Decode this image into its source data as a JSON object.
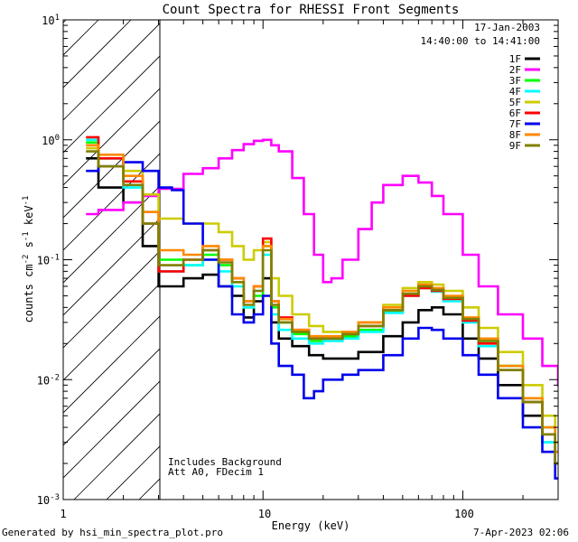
{
  "chart_data": {
    "type": "line",
    "title": "Count Spectra for RHESSI Front Segments",
    "xlabel": "Energy (keV)",
    "ylabel": "counts cm-2 s-1 keV-1",
    "xscale": "log",
    "yscale": "log",
    "xlim": [
      1,
      300
    ],
    "ylim": [
      0.001,
      10
    ],
    "x_tick_labels": [
      "1",
      "10",
      "100"
    ],
    "y_tick_labels": [
      "10-3",
      "10-2",
      "10-1",
      "100",
      "101"
    ],
    "hatched_region_keV": [
      1,
      3
    ],
    "date_label": "17-Jan-2003",
    "time_label": "14:40:00 to 14:41:00",
    "annotations": [
      "Includes Background",
      "Att A0, FDecim 1"
    ],
    "series": [
      {
        "name": "1F",
        "color": "#000000",
        "points": [
          [
            1.3,
            0.7
          ],
          [
            1.5,
            0.4
          ],
          [
            2,
            0.3
          ],
          [
            2.5,
            0.13
          ],
          [
            3,
            0.06
          ],
          [
            4,
            0.07
          ],
          [
            5,
            0.075
          ],
          [
            6,
            0.06
          ],
          [
            7,
            0.05
          ],
          [
            8,
            0.033
          ],
          [
            9,
            0.045
          ],
          [
            10,
            0.07
          ],
          [
            11,
            0.03
          ],
          [
            12,
            0.022
          ],
          [
            14,
            0.019
          ],
          [
            17,
            0.016
          ],
          [
            20,
            0.015
          ],
          [
            25,
            0.015
          ],
          [
            30,
            0.017
          ],
          [
            40,
            0.023
          ],
          [
            50,
            0.03
          ],
          [
            60,
            0.038
          ],
          [
            70,
            0.04
          ],
          [
            80,
            0.035
          ],
          [
            100,
            0.022
          ],
          [
            120,
            0.015
          ],
          [
            150,
            0.009
          ],
          [
            200,
            0.005
          ],
          [
            250,
            0.003
          ],
          [
            290,
            0.002
          ]
        ]
      },
      {
        "name": "2F",
        "color": "#ff00ff",
        "points": [
          [
            1.3,
            0.24
          ],
          [
            1.5,
            0.26
          ],
          [
            2,
            0.3
          ],
          [
            2.5,
            0.34
          ],
          [
            3,
            0.39
          ],
          [
            4,
            0.52
          ],
          [
            5,
            0.58
          ],
          [
            6,
            0.7
          ],
          [
            7,
            0.82
          ],
          [
            8,
            0.92
          ],
          [
            9,
            0.98
          ],
          [
            10,
            1.0
          ],
          [
            11,
            0.9
          ],
          [
            12,
            0.8
          ],
          [
            14,
            0.48
          ],
          [
            16,
            0.24
          ],
          [
            18,
            0.11
          ],
          [
            20,
            0.065
          ],
          [
            22,
            0.07
          ],
          [
            25,
            0.1
          ],
          [
            30,
            0.18
          ],
          [
            35,
            0.3
          ],
          [
            40,
            0.42
          ],
          [
            50,
            0.5
          ],
          [
            60,
            0.44
          ],
          [
            70,
            0.34
          ],
          [
            80,
            0.24
          ],
          [
            100,
            0.11
          ],
          [
            120,
            0.06
          ],
          [
            150,
            0.035
          ],
          [
            200,
            0.022
          ],
          [
            250,
            0.013
          ],
          [
            300,
            0.009
          ]
        ]
      },
      {
        "name": "3F",
        "color": "#00ff00",
        "points": [
          [
            1.3,
            0.95
          ],
          [
            1.5,
            0.7
          ],
          [
            2,
            0.45
          ],
          [
            2.5,
            0.25
          ],
          [
            3,
            0.1
          ],
          [
            4,
            0.09
          ],
          [
            5,
            0.11
          ],
          [
            6,
            0.09
          ],
          [
            7,
            0.065
          ],
          [
            8,
            0.04
          ],
          [
            9,
            0.05
          ],
          [
            10,
            0.13
          ],
          [
            11,
            0.04
          ],
          [
            12,
            0.03
          ],
          [
            14,
            0.024
          ],
          [
            17,
            0.021
          ],
          [
            20,
            0.022
          ],
          [
            25,
            0.023
          ],
          [
            30,
            0.026
          ],
          [
            40,
            0.037
          ],
          [
            50,
            0.052
          ],
          [
            60,
            0.06
          ],
          [
            70,
            0.056
          ],
          [
            80,
            0.048
          ],
          [
            100,
            0.032
          ],
          [
            120,
            0.021
          ],
          [
            150,
            0.013
          ],
          [
            200,
            0.007
          ],
          [
            250,
            0.004
          ],
          [
            290,
            0.0025
          ]
        ]
      },
      {
        "name": "4F",
        "color": "#00ffff",
        "points": [
          [
            1.3,
            1.0
          ],
          [
            1.5,
            0.7
          ],
          [
            2,
            0.4
          ],
          [
            2.5,
            0.2
          ],
          [
            3,
            0.08
          ],
          [
            4,
            0.09
          ],
          [
            5,
            0.1
          ],
          [
            6,
            0.08
          ],
          [
            7,
            0.06
          ],
          [
            8,
            0.04
          ],
          [
            9,
            0.055
          ],
          [
            10,
            0.11
          ],
          [
            11,
            0.035
          ],
          [
            12,
            0.026
          ],
          [
            14,
            0.022
          ],
          [
            17,
            0.02
          ],
          [
            20,
            0.021
          ],
          [
            25,
            0.022
          ],
          [
            30,
            0.025
          ],
          [
            40,
            0.036
          ],
          [
            50,
            0.05
          ],
          [
            60,
            0.058
          ],
          [
            70,
            0.054
          ],
          [
            80,
            0.045
          ],
          [
            100,
            0.03
          ],
          [
            120,
            0.019
          ],
          [
            150,
            0.012
          ],
          [
            200,
            0.0065
          ],
          [
            250,
            0.003
          ],
          [
            290,
            0.002
          ]
        ]
      },
      {
        "name": "5F",
        "color": "#cccc00",
        "points": [
          [
            1.3,
            0.85
          ],
          [
            1.5,
            0.6
          ],
          [
            2,
            0.55
          ],
          [
            2.5,
            0.35
          ],
          [
            3,
            0.22
          ],
          [
            4,
            0.2
          ],
          [
            5,
            0.2
          ],
          [
            6,
            0.17
          ],
          [
            7,
            0.13
          ],
          [
            8,
            0.1
          ],
          [
            9,
            0.12
          ],
          [
            10,
            0.14
          ],
          [
            11,
            0.07
          ],
          [
            12,
            0.05
          ],
          [
            14,
            0.035
          ],
          [
            17,
            0.028
          ],
          [
            20,
            0.025
          ],
          [
            25,
            0.025
          ],
          [
            30,
            0.03
          ],
          [
            40,
            0.042
          ],
          [
            50,
            0.058
          ],
          [
            60,
            0.065
          ],
          [
            70,
            0.062
          ],
          [
            80,
            0.055
          ],
          [
            100,
            0.04
          ],
          [
            120,
            0.027
          ],
          [
            150,
            0.017
          ],
          [
            200,
            0.009
          ],
          [
            250,
            0.005
          ],
          [
            290,
            0.003
          ]
        ]
      },
      {
        "name": "6F",
        "color": "#ff0000",
        "points": [
          [
            1.3,
            1.05
          ],
          [
            1.5,
            0.7
          ],
          [
            2,
            0.45
          ],
          [
            2.5,
            0.2
          ],
          [
            3,
            0.08
          ],
          [
            4,
            0.1
          ],
          [
            5,
            0.12
          ],
          [
            6,
            0.1
          ],
          [
            7,
            0.07
          ],
          [
            8,
            0.045
          ],
          [
            9,
            0.06
          ],
          [
            10,
            0.15
          ],
          [
            11,
            0.045
          ],
          [
            12,
            0.033
          ],
          [
            14,
            0.026
          ],
          [
            17,
            0.022
          ],
          [
            20,
            0.022
          ],
          [
            25,
            0.024
          ],
          [
            30,
            0.028
          ],
          [
            40,
            0.038
          ],
          [
            50,
            0.05
          ],
          [
            60,
            0.058
          ],
          [
            70,
            0.055
          ],
          [
            80,
            0.047
          ],
          [
            100,
            0.031
          ],
          [
            120,
            0.02
          ],
          [
            150,
            0.012
          ],
          [
            200,
            0.0065
          ],
          [
            250,
            0.0035
          ],
          [
            290,
            0.002
          ]
        ]
      },
      {
        "name": "7F",
        "color": "#0000ee",
        "points": [
          [
            1.3,
            0.55
          ],
          [
            1.5,
            0.6
          ],
          [
            2,
            0.65
          ],
          [
            2.5,
            0.55
          ],
          [
            3,
            0.4
          ],
          [
            3.5,
            0.38
          ],
          [
            4,
            0.2
          ],
          [
            5,
            0.1
          ],
          [
            6,
            0.06
          ],
          [
            7,
            0.035
          ],
          [
            8,
            0.03
          ],
          [
            9,
            0.035
          ],
          [
            10,
            0.05
          ],
          [
            11,
            0.02
          ],
          [
            12,
            0.013
          ],
          [
            14,
            0.011
          ],
          [
            16,
            0.007
          ],
          [
            18,
            0.008
          ],
          [
            20,
            0.01
          ],
          [
            25,
            0.011
          ],
          [
            30,
            0.012
          ],
          [
            40,
            0.016
          ],
          [
            50,
            0.022
          ],
          [
            60,
            0.027
          ],
          [
            70,
            0.026
          ],
          [
            80,
            0.022
          ],
          [
            100,
            0.016
          ],
          [
            120,
            0.011
          ],
          [
            150,
            0.007
          ],
          [
            200,
            0.004
          ],
          [
            250,
            0.0025
          ],
          [
            290,
            0.0015
          ]
        ]
      },
      {
        "name": "8F",
        "color": "#ff8800",
        "points": [
          [
            1.3,
            0.9
          ],
          [
            1.5,
            0.75
          ],
          [
            2,
            0.5
          ],
          [
            2.5,
            0.25
          ],
          [
            3,
            0.12
          ],
          [
            4,
            0.11
          ],
          [
            5,
            0.13
          ],
          [
            6,
            0.1
          ],
          [
            7,
            0.07
          ],
          [
            8,
            0.045
          ],
          [
            9,
            0.06
          ],
          [
            10,
            0.13
          ],
          [
            11,
            0.045
          ],
          [
            12,
            0.032
          ],
          [
            14,
            0.026
          ],
          [
            17,
            0.023
          ],
          [
            20,
            0.023
          ],
          [
            25,
            0.025
          ],
          [
            30,
            0.03
          ],
          [
            40,
            0.04
          ],
          [
            50,
            0.055
          ],
          [
            60,
            0.062
          ],
          [
            70,
            0.058
          ],
          [
            80,
            0.05
          ],
          [
            100,
            0.033
          ],
          [
            120,
            0.022
          ],
          [
            150,
            0.013
          ],
          [
            200,
            0.007
          ],
          [
            250,
            0.004
          ],
          [
            290,
            0.0025
          ]
        ]
      },
      {
        "name": "9F",
        "color": "#808000",
        "points": [
          [
            1.3,
            0.8
          ],
          [
            1.5,
            0.6
          ],
          [
            2,
            0.42
          ],
          [
            2.5,
            0.2
          ],
          [
            3,
            0.09
          ],
          [
            4,
            0.1
          ],
          [
            5,
            0.12
          ],
          [
            6,
            0.095
          ],
          [
            7,
            0.065
          ],
          [
            8,
            0.042
          ],
          [
            9,
            0.055
          ],
          [
            10,
            0.12
          ],
          [
            11,
            0.042
          ],
          [
            12,
            0.03
          ],
          [
            14,
            0.025
          ],
          [
            17,
            0.022
          ],
          [
            20,
            0.022
          ],
          [
            25,
            0.024
          ],
          [
            30,
            0.028
          ],
          [
            40,
            0.038
          ],
          [
            50,
            0.052
          ],
          [
            60,
            0.06
          ],
          [
            70,
            0.056
          ],
          [
            80,
            0.048
          ],
          [
            100,
            0.032
          ],
          [
            120,
            0.021
          ],
          [
            150,
            0.012
          ],
          [
            200,
            0.0065
          ],
          [
            250,
            0.0035
          ],
          [
            290,
            0.002
          ]
        ]
      }
    ]
  },
  "footer": {
    "left": "Generated by hsi_min_spectra_plot.pro",
    "right": "7-Apr-2023 02:06"
  }
}
